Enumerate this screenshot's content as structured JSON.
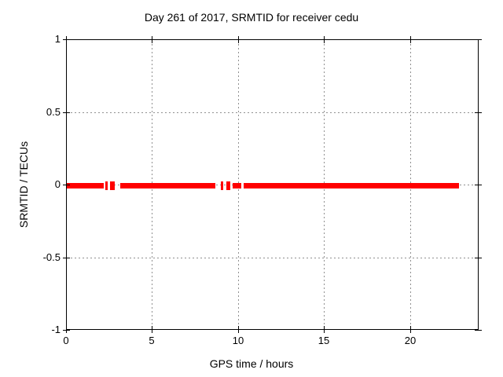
{
  "chart_data": {
    "type": "scatter",
    "title": "Day 261 of 2017, SRMTID for receiver cedu",
    "xlabel": "GPS time / hours",
    "ylabel": "SRMTID / TECUs",
    "xlim": [
      0,
      24
    ],
    "ylim": [
      -1,
      1
    ],
    "xticks": [
      {
        "v": 0,
        "label": "0"
      },
      {
        "v": 5,
        "label": "5"
      },
      {
        "v": 10,
        "label": "10"
      },
      {
        "v": 15,
        "label": "15"
      },
      {
        "v": 20,
        "label": "20"
      }
    ],
    "yticks": [
      {
        "v": 1,
        "label": "1"
      },
      {
        "v": 0.5,
        "label": "0.5"
      },
      {
        "v": 0,
        "label": "0"
      },
      {
        "v": -0.5,
        "label": "-0.5"
      },
      {
        "v": -1,
        "label": "-1"
      }
    ],
    "grid": true,
    "legend": "none",
    "series": [
      {
        "name": "SRMTID",
        "marker": "plus",
        "color": "#ff0000",
        "y": 0,
        "segments_hours": [
          [
            0.0,
            2.14
          ],
          [
            2.26,
            2.38
          ],
          [
            2.5,
            2.62
          ],
          [
            2.66,
            2.8
          ],
          [
            3.1,
            8.65
          ],
          [
            8.95,
            9.07
          ],
          [
            9.26,
            9.38
          ],
          [
            9.42,
            9.53
          ],
          [
            9.64,
            10.15
          ],
          [
            10.3,
            22.83
          ]
        ]
      }
    ],
    "colors": {
      "marker": "#ff0000",
      "grid": "#909090",
      "border": "#000000",
      "background": "#ffffff",
      "text": "#000000"
    }
  }
}
